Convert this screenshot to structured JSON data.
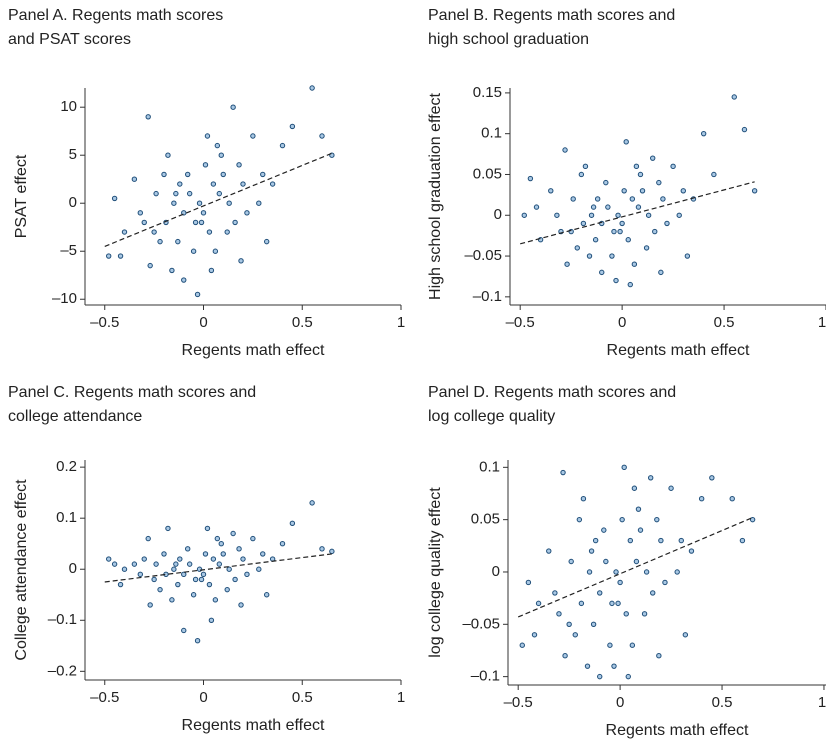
{
  "chart_data": [
    {
      "type": "scatter",
      "title": [
        "Panel A. Regents math scores",
        "and PSAT scores"
      ],
      "xlabel": "Regents math effect",
      "ylabel": "PSAT effect",
      "color": "#1f4e79",
      "x": [
        -0.48,
        -0.45,
        -0.42,
        -0.4,
        -0.35,
        -0.32,
        -0.3,
        -0.28,
        -0.27,
        -0.25,
        -0.24,
        -0.22,
        -0.2,
        -0.19,
        -0.18,
        -0.16,
        -0.15,
        -0.13,
        -0.12,
        -0.1,
        -0.1,
        -0.08,
        -0.07,
        -0.05,
        -0.04,
        -0.03,
        -0.02,
        0,
        0.01,
        0.02,
        0.03,
        0.05,
        0.06,
        0.08,
        0.09,
        0.1,
        0.12,
        0.13,
        0.15,
        0.16,
        0.18,
        0.2,
        0.22,
        0.25,
        0.28,
        0.3,
        0.32,
        0.35,
        0.4,
        0.45,
        0.55,
        0.6,
        0.65,
        -0.01,
        0.07,
        -0.14,
        0.19,
        0.04
      ],
      "y": [
        -5.5,
        0.5,
        -5.5,
        -3,
        2.5,
        -1,
        -2,
        9,
        -6.5,
        -3,
        1,
        -4,
        3,
        -2,
        5,
        -7,
        0,
        -4,
        2,
        -8,
        -1,
        3,
        1,
        -5,
        -2,
        -9.5,
        0,
        -1,
        4,
        7,
        -3,
        2,
        -5,
        1,
        5,
        3,
        -3,
        0,
        10,
        -2,
        4,
        2,
        -1,
        7,
        0,
        3,
        -4,
        2,
        6,
        8,
        12,
        7,
        5,
        -2,
        6,
        1,
        -6,
        -7
      ],
      "fit": {
        "x": [
          -0.5,
          0.65
        ],
        "y": [
          -4.5,
          5.2
        ]
      },
      "xlim": [
        -0.6,
        1
      ],
      "ylim": [
        -10.6,
        12
      ],
      "xticks": [
        {
          "value": -0.5,
          "label": "–0.5"
        },
        0,
        0.5,
        1
      ],
      "yticks": [
        {
          "value": -10,
          "label": "–10"
        },
        {
          "value": -5,
          "label": "–5"
        },
        0,
        5,
        10
      ]
    },
    {
      "type": "scatter",
      "title": [
        "Panel B. Regents math scores and",
        "high school graduation"
      ],
      "xlabel": "Regents math effect",
      "ylabel": "High school graduation effect",
      "color": "#1f4e79",
      "x": [
        -0.48,
        -0.45,
        -0.42,
        -0.4,
        -0.35,
        -0.32,
        -0.3,
        -0.28,
        -0.27,
        -0.25,
        -0.24,
        -0.22,
        -0.2,
        -0.19,
        -0.18,
        -0.16,
        -0.15,
        -0.13,
        -0.12,
        -0.1,
        -0.1,
        -0.08,
        -0.07,
        -0.05,
        -0.04,
        -0.03,
        -0.02,
        0,
        0.01,
        0.02,
        0.03,
        0.05,
        0.06,
        0.08,
        0.09,
        0.1,
        0.12,
        0.13,
        0.15,
        0.16,
        0.18,
        0.2,
        0.22,
        0.25,
        0.28,
        0.3,
        0.32,
        0.35,
        0.4,
        0.45,
        0.55,
        0.6,
        0.65,
        -0.01,
        0.07,
        -0.14,
        0.19,
        0.04
      ],
      "y": [
        0,
        0.045,
        0.01,
        -0.03,
        0.03,
        0,
        -0.02,
        0.08,
        -0.06,
        -0.02,
        0.02,
        -0.04,
        0.05,
        -0.01,
        0.06,
        -0.05,
        0,
        -0.03,
        0.02,
        -0.07,
        -0.01,
        0.04,
        0.01,
        -0.05,
        -0.02,
        -0.08,
        0,
        -0.01,
        0.03,
        0.09,
        -0.03,
        0.02,
        -0.06,
        0.01,
        0.05,
        0.03,
        -0.04,
        0,
        0.07,
        -0.02,
        0.04,
        0.02,
        -0.01,
        0.06,
        0,
        0.03,
        -0.05,
        0.02,
        0.1,
        0.05,
        0.145,
        0.105,
        0.03,
        -0.02,
        0.06,
        0.01,
        -0.07,
        -0.085
      ],
      "fit": {
        "x": [
          -0.5,
          0.65
        ],
        "y": [
          -0.035,
          0.041
        ]
      },
      "xlim": [
        -0.55,
        1
      ],
      "ylim": [
        -0.11,
        0.156
      ],
      "xticks": [
        {
          "value": -0.5,
          "label": "–0.5"
        },
        0,
        0.5,
        1
      ],
      "yticks": [
        {
          "value": -0.1,
          "label": "–0.1"
        },
        {
          "value": -0.05,
          "label": "–0.05"
        },
        0,
        0.05,
        0.1,
        0.15
      ]
    },
    {
      "type": "scatter",
      "title": [
        "Panel C. Regents math scores and",
        "college attendance"
      ],
      "xlabel": "Regents math effect",
      "ylabel": "College attendance effect",
      "color": "#1f4e79",
      "x": [
        -0.48,
        -0.45,
        -0.42,
        -0.4,
        -0.35,
        -0.32,
        -0.3,
        -0.28,
        -0.27,
        -0.25,
        -0.24,
        -0.22,
        -0.2,
        -0.19,
        -0.18,
        -0.16,
        -0.15,
        -0.13,
        -0.12,
        -0.1,
        -0.1,
        -0.08,
        -0.07,
        -0.05,
        -0.04,
        -0.03,
        -0.02,
        0,
        0.01,
        0.02,
        0.03,
        0.05,
        0.06,
        0.08,
        0.09,
        0.1,
        0.12,
        0.13,
        0.15,
        0.16,
        0.18,
        0.2,
        0.22,
        0.25,
        0.28,
        0.3,
        0.32,
        0.35,
        0.4,
        0.45,
        0.55,
        0.6,
        0.65,
        -0.01,
        0.07,
        -0.14,
        0.19,
        0.04
      ],
      "y": [
        0.02,
        0.01,
        -0.03,
        0,
        0.01,
        -0.01,
        0.02,
        0.06,
        -0.07,
        -0.02,
        0.01,
        -0.04,
        0.03,
        -0.01,
        0.08,
        -0.06,
        0,
        -0.03,
        0.02,
        -0.12,
        -0.01,
        0.04,
        0.01,
        -0.05,
        -0.02,
        -0.14,
        0,
        -0.01,
        0.03,
        0.08,
        -0.03,
        0.02,
        -0.06,
        0.01,
        0.05,
        0.03,
        -0.04,
        0,
        0.07,
        -0.02,
        0.04,
        0.02,
        -0.01,
        0.06,
        0,
        0.03,
        -0.05,
        0.02,
        0.05,
        0.09,
        0.13,
        0.04,
        0.035,
        -0.02,
        0.06,
        0.01,
        -0.07,
        -0.1
      ],
      "fit": {
        "x": [
          -0.5,
          0.65
        ],
        "y": [
          -0.025,
          0.03
        ]
      },
      "xlim": [
        -0.6,
        1
      ],
      "ylim": [
        -0.217,
        0.214
      ],
      "xticks": [
        {
          "value": -0.5,
          "label": "–0.5"
        },
        0,
        0.5,
        1
      ],
      "yticks": [
        {
          "value": -0.2,
          "label": "–0.2"
        },
        {
          "value": -0.1,
          "label": "–0.1"
        },
        0,
        0.1,
        0.2
      ]
    },
    {
      "type": "scatter",
      "title": [
        "Panel D. Regents math scores and",
        "log college quality"
      ],
      "xlabel": "Regents math effect",
      "ylabel": "log college quality effect",
      "color": "#1f4e79",
      "x": [
        -0.48,
        -0.45,
        -0.42,
        -0.4,
        -0.35,
        -0.32,
        -0.3,
        -0.28,
        -0.27,
        -0.25,
        -0.24,
        -0.22,
        -0.2,
        -0.19,
        -0.18,
        -0.16,
        -0.15,
        -0.13,
        -0.12,
        -0.1,
        -0.1,
        -0.08,
        -0.07,
        -0.05,
        -0.04,
        -0.03,
        -0.02,
        0,
        0.01,
        0.02,
        0.03,
        0.05,
        0.06,
        0.08,
        0.09,
        0.1,
        0.12,
        0.13,
        0.15,
        0.16,
        0.18,
        0.2,
        0.22,
        0.25,
        0.28,
        0.3,
        0.32,
        0.35,
        0.4,
        0.45,
        0.55,
        0.6,
        0.65,
        -0.01,
        0.07,
        -0.14,
        0.19,
        0.04
      ],
      "y": [
        -0.07,
        -0.01,
        -0.06,
        -0.03,
        0.02,
        -0.02,
        -0.04,
        0.095,
        -0.08,
        -0.05,
        0.01,
        -0.06,
        0.05,
        -0.03,
        0.07,
        -0.09,
        0,
        -0.05,
        0.03,
        -0.1,
        -0.02,
        0.04,
        0.01,
        -0.07,
        -0.03,
        -0.09,
        0,
        -0.01,
        0.05,
        0.1,
        -0.04,
        0.03,
        -0.07,
        0.01,
        0.06,
        0.04,
        -0.04,
        0,
        0.09,
        -0.02,
        0.05,
        0.03,
        -0.01,
        0.08,
        0,
        0.03,
        -0.06,
        0.02,
        0.07,
        0.09,
        0.07,
        0.03,
        0.05,
        -0.03,
        0.08,
        0.02,
        -0.08,
        -0.1
      ],
      "fit": {
        "x": [
          -0.5,
          0.65
        ],
        "y": [
          -0.043,
          0.052
        ]
      },
      "xlim": [
        -0.55,
        1.01
      ],
      "ylim": [
        -0.108,
        0.107
      ],
      "xticks": [
        {
          "value": -0.5,
          "label": "–0.5"
        },
        0,
        0.5,
        1
      ],
      "yticks": [
        {
          "value": -0.1,
          "label": "–0.1"
        },
        {
          "value": -0.05,
          "label": "–0.05"
        },
        0,
        0.05,
        0.1
      ]
    }
  ]
}
